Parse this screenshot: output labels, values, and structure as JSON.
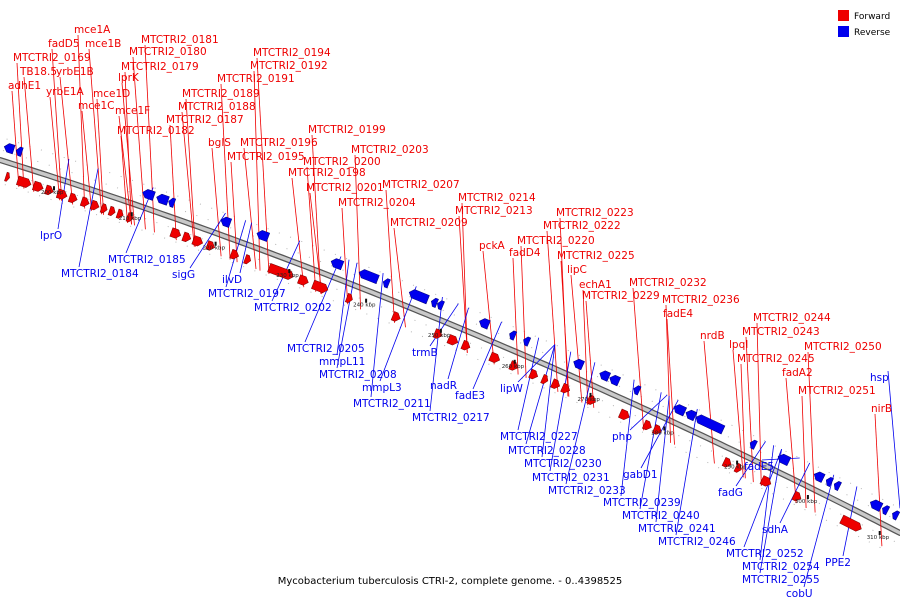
{
  "colors": {
    "forward": "#ee0000",
    "reverse": "#0000ee",
    "backbone": "#8a8a8a"
  },
  "legend": [
    {
      "label": "Forward",
      "strand": "forward"
    },
    {
      "label": "Reverse",
      "strand": "reverse"
    }
  ],
  "caption": "Mycobacterium tuberculosis CTRI-2, complete genome. - 0..4398525",
  "ticks": [
    "200 kbp",
    "210 kbp",
    "220 kbp",
    "230 kbp",
    "240 kbp",
    "250 kbp",
    "260 kbp",
    "270 kbp",
    "280 kbp",
    "290 kbp",
    "300 kbp",
    "310 kbp"
  ],
  "forward_labels": [
    "mce1A",
    "fadD5",
    "mce1B",
    "MTCTRI2_0169",
    "TB18.5",
    "yrbE1B",
    "adhE1",
    "yrbE1A",
    "lprK",
    "mce1D",
    "mce1C",
    "mce1F",
    "MTCTRI2_0182",
    "MTCTRI2_0181",
    "MTCTRI2_0180",
    "MTCTRI2_0179",
    "MTCTRI2_0189",
    "MTCTRI2_0188",
    "MTCTRI2_0187",
    "bglS",
    "MTCTRI2_0194",
    "MTCTRI2_0192",
    "MTCTRI2_0191",
    "MTCTRI2_0196",
    "MTCTRI2_0195",
    "MTCTRI2_0199",
    "MTCTRI2_0198",
    "MTCTRI2_0203",
    "MTCTRI2_0200",
    "MTCTRI2_0201",
    "MTCTRI2_0204",
    "MTCTRI2_0207",
    "MTCTRI2_0209",
    "MTCTRI2_0214",
    "MTCTRI2_0213",
    "pckA",
    "fadD4",
    "MTCTRI2_0223",
    "MTCTRI2_0222",
    "MTCTRI2_0220",
    "MTCTRI2_0225",
    "lipC",
    "echA1",
    "MTCTRI2_0229",
    "MTCTRI2_0232",
    "MTCTRI2_0236",
    "fadE4",
    "nrdB",
    "MTCTRI2_0244",
    "MTCTRI2_0243",
    "lpqI",
    "MTCTRI2_0245",
    "MTCTRI2_0250",
    "fadA2",
    "MTCTRI2_0251",
    "nirB"
  ],
  "reverse_labels": [
    "lprO",
    "MTCTRI2_0184",
    "MTCTRI2_0185",
    "sigG",
    "ilvD",
    "MTCTRI2_0197",
    "MTCTRI2_0202",
    "MTCTRI2_0205",
    "mmpL11",
    "MTCTRI2_0208",
    "trmB",
    "mmpL3",
    "MTCTRI2_0211",
    "nadR",
    "fadE3",
    "lipW",
    "MTCTRI2_0217",
    "MTCTRI2_0227",
    "MTCTRI2_0228",
    "php",
    "MTCTRI2_0230",
    "MTCTRI2_0231",
    "MTCTRI2_0233",
    "gabD1",
    "MTCTRI2_0239",
    "MTCTRI2_0240",
    "fadG",
    "fadE5",
    "MTCTRI2_0241",
    "MTCTRI2_0246",
    "sdhA",
    "MTCTRI2_0252",
    "MTCTRI2_0254",
    "MTCTRI2_0255",
    "cobU",
    "hsp",
    "PPE2"
  ]
}
